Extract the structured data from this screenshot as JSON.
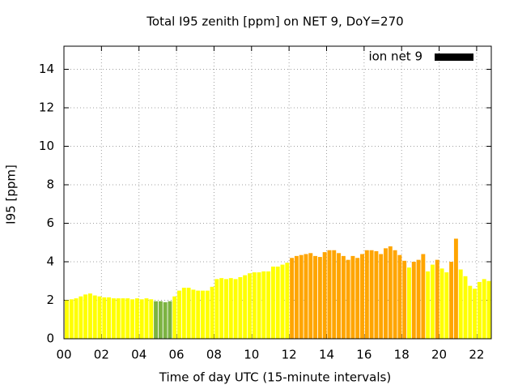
{
  "chart_data": {
    "type": "bar",
    "title": "Total I95 zenith [ppm] on NET 9, DoY=270",
    "x_label": "Time of day UTC (15-minute intervals)",
    "y_label": "I95 [ppm]",
    "x": [
      0,
      0.25,
      0.5,
      0.75,
      1,
      1.25,
      1.5,
      1.75,
      2,
      2.25,
      2.5,
      2.75,
      3,
      3.25,
      3.5,
      3.75,
      4,
      4.25,
      4.5,
      4.75,
      5,
      5.25,
      5.5,
      5.75,
      6,
      6.25,
      6.5,
      6.75,
      7,
      7.25,
      7.5,
      7.75,
      8,
      8.25,
      8.5,
      8.75,
      9,
      9.25,
      9.5,
      9.75,
      10,
      10.25,
      10.5,
      10.75,
      11,
      11.25,
      11.5,
      11.75,
      12,
      12.25,
      12.5,
      12.75,
      13,
      13.25,
      13.5,
      13.75,
      14,
      14.25,
      14.5,
      14.75,
      15,
      15.25,
      15.5,
      15.75,
      16,
      16.25,
      16.5,
      16.75,
      17,
      17.25,
      17.5,
      17.75,
      18,
      18.25,
      18.5,
      18.75,
      19,
      19.25,
      19.5,
      19.75,
      20,
      20.25,
      20.5,
      20.75,
      21,
      21.25,
      21.5,
      21.75,
      22,
      22.25,
      22.5
    ],
    "series": [
      {
        "name": "ion net 9",
        "color": "#000000",
        "values": [
          2.0,
          2.05,
          2.1,
          2.2,
          2.3,
          2.35,
          2.25,
          2.2,
          2.15,
          2.15,
          2.1,
          2.1,
          2.1,
          2.1,
          2.05,
          2.1,
          2.05,
          2.1,
          2.05,
          1.95,
          1.95,
          1.9,
          1.95,
          2.2,
          2.5,
          2.65,
          2.65,
          2.55,
          2.5,
          2.5,
          2.5,
          2.7,
          3.1,
          3.15,
          3.1,
          3.15,
          3.1,
          3.2,
          3.3,
          3.4,
          3.45,
          3.45,
          3.5,
          3.5,
          3.75,
          3.75,
          3.85,
          3.95,
          4.2,
          4.3,
          4.35,
          4.4,
          4.45,
          4.3,
          4.25,
          4.5,
          4.6,
          4.6,
          4.45,
          4.3,
          4.1,
          4.3,
          4.2,
          4.4,
          4.6,
          4.6,
          4.55,
          4.4,
          4.7,
          4.8,
          4.6,
          4.35,
          4.05,
          3.7,
          4.0,
          4.1,
          4.4,
          3.5,
          3.85,
          4.1,
          3.65,
          3.45,
          4.0,
          5.2,
          3.6,
          3.25,
          2.75,
          2.6,
          2.95,
          3.1,
          3.0
        ],
        "bar_colors": [
          "#ffff00",
          "#ffff00",
          "#ffff00",
          "#ffff00",
          "#ffff00",
          "#ffff00",
          "#ffff00",
          "#ffff00",
          "#ffff00",
          "#ffff00",
          "#ffff00",
          "#ffff00",
          "#ffff00",
          "#ffff00",
          "#ffff00",
          "#ffff00",
          "#ffff00",
          "#ffff00",
          "#ffff00",
          "#7cb342",
          "#7cb342",
          "#7cb342",
          "#7cb342",
          "#ffff00",
          "#ffff00",
          "#ffff00",
          "#ffff00",
          "#ffff00",
          "#ffff00",
          "#ffff00",
          "#ffff00",
          "#ffff00",
          "#ffff00",
          "#ffff00",
          "#ffff00",
          "#ffff00",
          "#ffff00",
          "#ffff00",
          "#ffff00",
          "#ffff00",
          "#ffff00",
          "#ffff00",
          "#ffff00",
          "#ffff00",
          "#ffff00",
          "#ffff00",
          "#ffff00",
          "#ffff00",
          "#ffa500",
          "#ffa500",
          "#ffa500",
          "#ffa500",
          "#ffa500",
          "#ffa500",
          "#ffa500",
          "#ffa500",
          "#ffa500",
          "#ffa500",
          "#ffa500",
          "#ffa500",
          "#ffa500",
          "#ffa500",
          "#ffa500",
          "#ffa500",
          "#ffa500",
          "#ffa500",
          "#ffa500",
          "#ffa500",
          "#ffa500",
          "#ffa500",
          "#ffa500",
          "#ffa500",
          "#ffa500",
          "#ffff00",
          "#ffa500",
          "#ffa500",
          "#ffa500",
          "#ffff00",
          "#ffff00",
          "#ffa500",
          "#ffff00",
          "#ffff00",
          "#ffa500",
          "#ffa500",
          "#ffff00",
          "#ffff00",
          "#ffff00",
          "#ffff00",
          "#ffff00",
          "#ffff00",
          "#ffff00"
        ]
      }
    ],
    "xlim": [
      0,
      22.78
    ],
    "ylim": [
      0,
      15.2
    ],
    "xticks": [
      {
        "value": 0,
        "label": "00"
      },
      {
        "value": 2,
        "label": "02"
      },
      {
        "value": 4,
        "label": "04"
      },
      {
        "value": 6,
        "label": "06"
      },
      {
        "value": 8,
        "label": "08"
      },
      {
        "value": 10,
        "label": "10"
      },
      {
        "value": 12,
        "label": "12"
      },
      {
        "value": 14,
        "label": "14"
      },
      {
        "value": 16,
        "label": "16"
      },
      {
        "value": 18,
        "label": "18"
      },
      {
        "value": 20,
        "label": "20"
      },
      {
        "value": 22,
        "label": "22"
      }
    ],
    "yticks": [
      0,
      2,
      4,
      6,
      8,
      10,
      12,
      14
    ],
    "grid": true,
    "legend": "top-right"
  }
}
